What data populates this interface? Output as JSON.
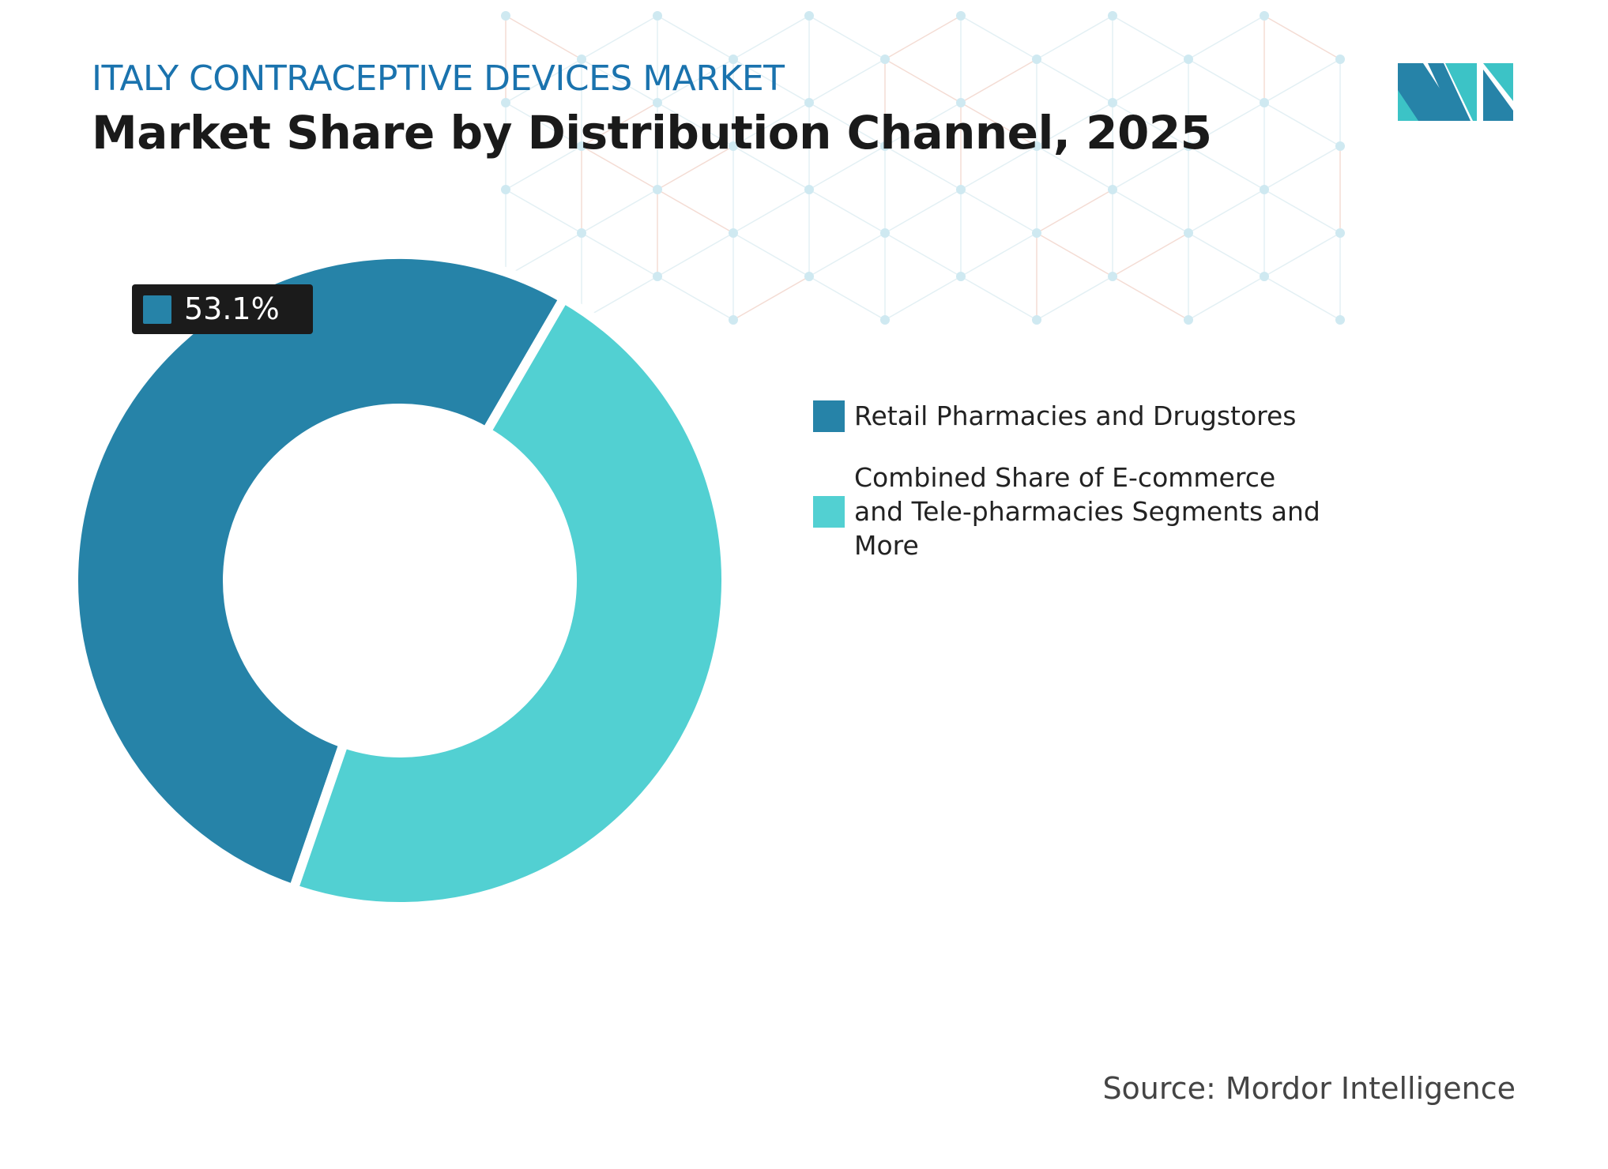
{
  "header": {
    "subtitle": "ITALY CONTRACEPTIVE DEVICES MARKET",
    "title": "Market Share by Distribution Channel, 2025"
  },
  "source": "Source: Mordor Intelligence",
  "logo": {
    "text": "MI"
  },
  "chart_data": {
    "type": "pie",
    "subtype": "donut",
    "categories": [
      "Retail Pharmacies and Drugstores",
      "Combined Share of E-commerce and Tele-pharmacies Segments and More"
    ],
    "values": [
      53.1,
      46.9
    ],
    "colors": [
      "#2683a8",
      "#52d0d2"
    ],
    "data_labels": [
      "53.1%"
    ],
    "legend_placement": "right"
  }
}
